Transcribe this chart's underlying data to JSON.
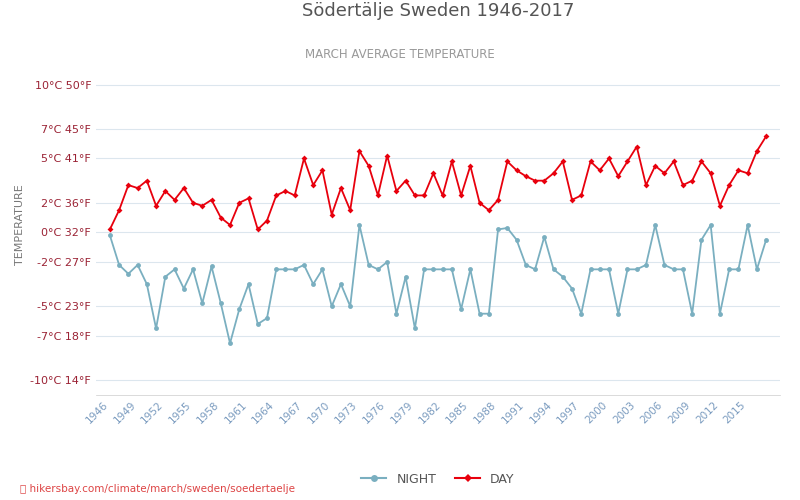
{
  "title": "Södertälje Sweden 1946-2017",
  "subtitle": "MARCH AVERAGE TEMPERATURE",
  "ylabel": "TEMPERATURE",
  "footnote": "hikersbay.com/climate/march/sweden/soedertaelje",
  "yticks_celsius": [
    10,
    7,
    5,
    2,
    0,
    -2,
    -5,
    -7,
    -10
  ],
  "yticks_fahrenheit": [
    50,
    45,
    41,
    36,
    32,
    27,
    23,
    18,
    14
  ],
  "years": [
    1946,
    1947,
    1948,
    1949,
    1950,
    1951,
    1952,
    1953,
    1954,
    1955,
    1956,
    1957,
    1958,
    1959,
    1960,
    1961,
    1962,
    1963,
    1964,
    1965,
    1966,
    1967,
    1968,
    1969,
    1970,
    1971,
    1972,
    1973,
    1974,
    1975,
    1976,
    1977,
    1978,
    1979,
    1980,
    1981,
    1982,
    1983,
    1984,
    1985,
    1986,
    1987,
    1988,
    1989,
    1990,
    1991,
    1992,
    1993,
    1994,
    1995,
    1996,
    1997,
    1998,
    1999,
    2000,
    2001,
    2002,
    2003,
    2004,
    2005,
    2006,
    2007,
    2008,
    2009,
    2010,
    2011,
    2012,
    2013,
    2014,
    2015,
    2016,
    2017
  ],
  "day_temps": [
    0.2,
    1.5,
    3.2,
    3.0,
    3.5,
    1.8,
    2.8,
    2.2,
    3.0,
    2.0,
    1.8,
    2.2,
    1.0,
    0.5,
    2.0,
    2.3,
    0.2,
    0.8,
    2.5,
    2.8,
    2.5,
    5.0,
    3.2,
    4.2,
    1.2,
    3.0,
    1.5,
    5.5,
    4.5,
    2.5,
    5.2,
    2.8,
    3.5,
    2.5,
    2.5,
    4.0,
    2.5,
    4.8,
    2.5,
    4.5,
    2.0,
    1.5,
    2.2,
    4.8,
    4.2,
    3.8,
    3.5,
    3.5,
    4.0,
    4.8,
    2.2,
    2.5,
    4.8,
    4.2,
    5.0,
    3.8,
    4.8,
    5.8,
    3.2,
    4.5,
    4.0,
    4.8,
    3.2,
    3.5,
    4.8,
    4.0,
    1.8,
    3.2,
    4.2,
    4.0,
    5.5,
    6.5
  ],
  "night_temps": [
    -0.2,
    -2.2,
    -2.8,
    -2.2,
    -3.5,
    -6.5,
    -3.0,
    -2.5,
    -3.8,
    -2.5,
    -4.8,
    -2.3,
    -4.8,
    -7.5,
    -5.2,
    -3.5,
    -6.2,
    -5.8,
    -2.5,
    -2.5,
    -2.5,
    -2.2,
    -3.5,
    -2.5,
    -5.0,
    -3.5,
    -5.0,
    0.5,
    -2.2,
    -2.5,
    -2.0,
    -5.5,
    -3.0,
    -6.5,
    -2.5,
    -2.5,
    -2.5,
    -2.5,
    -5.2,
    -2.5,
    -5.5,
    -5.5,
    0.2,
    0.3,
    -0.5,
    -2.2,
    -2.5,
    -0.3,
    -2.5,
    -3.0,
    -3.8,
    -5.5,
    -2.5,
    -2.5,
    -2.5,
    -5.5,
    -2.5,
    -2.5,
    -2.2,
    0.5,
    -2.2,
    -2.5,
    -2.5,
    -5.5,
    -0.5,
    0.5,
    -5.5,
    -2.5,
    -2.5,
    0.5,
    -2.5,
    -0.5
  ],
  "day_color": "#e8000d",
  "night_color": "#7aafc0",
  "background_color": "#ffffff",
  "grid_color": "#dce6ee",
  "title_color": "#555555",
  "subtitle_color": "#999999",
  "tick_label_color": "#9b2335",
  "xtick_label_color": "#7a9bbf",
  "ylabel_color": "#777777",
  "footnote_color": "#dd4444",
  "ylim": [
    -11,
    12
  ],
  "xlim_left": 1944.5,
  "xlim_right": 2018.5,
  "legend_night": "NIGHT",
  "legend_day": "DAY",
  "xtick_step": 3
}
